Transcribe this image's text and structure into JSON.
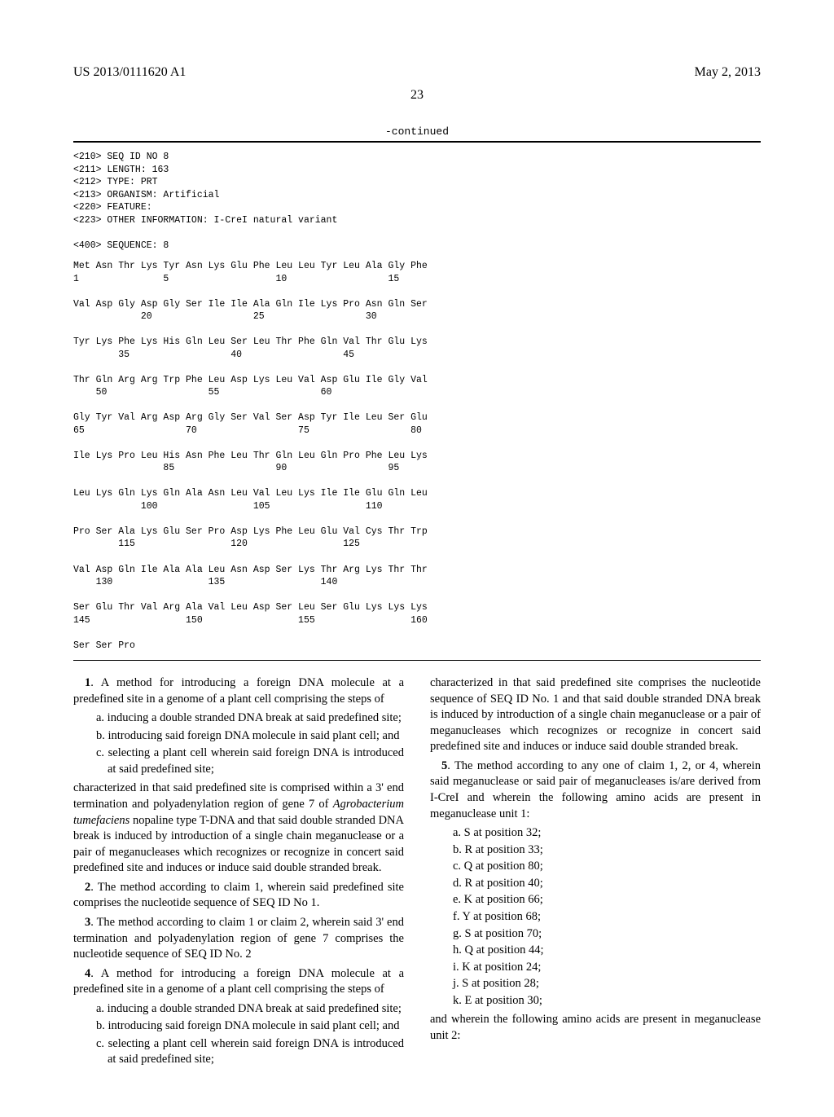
{
  "header": {
    "pub_number": "US 2013/0111620 A1",
    "pub_date": "May 2, 2013",
    "page_number": "23",
    "continued_label": "-continued"
  },
  "seq_meta": {
    "l210": "<210> SEQ ID NO 8",
    "l211": "<211> LENGTH: 163",
    "l212": "<212> TYPE: PRT",
    "l213": "<213> ORGANISM: Artificial",
    "l220": "<220> FEATURE:",
    "l223": "<223> OTHER INFORMATION: I-CreI natural variant",
    "l400": "<400> SEQUENCE: 8"
  },
  "seq_lines": [
    "Met Asn Thr Lys Tyr Asn Lys Glu Phe Leu Leu Tyr Leu Ala Gly Phe",
    "1               5                   10                  15",
    "",
    "Val Asp Gly Asp Gly Ser Ile Ile Ala Gln Ile Lys Pro Asn Gln Ser",
    "            20                  25                  30",
    "",
    "Tyr Lys Phe Lys His Gln Leu Ser Leu Thr Phe Gln Val Thr Glu Lys",
    "        35                  40                  45",
    "",
    "Thr Gln Arg Arg Trp Phe Leu Asp Lys Leu Val Asp Glu Ile Gly Val",
    "    50                  55                  60",
    "",
    "Gly Tyr Val Arg Asp Arg Gly Ser Val Ser Asp Tyr Ile Leu Ser Glu",
    "65                  70                  75                  80",
    "",
    "Ile Lys Pro Leu His Asn Phe Leu Thr Gln Leu Gln Pro Phe Leu Lys",
    "                85                  90                  95",
    "",
    "Leu Lys Gln Lys Gln Ala Asn Leu Val Leu Lys Ile Ile Glu Gln Leu",
    "            100                 105                 110",
    "",
    "Pro Ser Ala Lys Glu Ser Pro Asp Lys Phe Leu Glu Val Cys Thr Trp",
    "        115                 120                 125",
    "",
    "Val Asp Gln Ile Ala Ala Leu Asn Asp Ser Lys Thr Arg Lys Thr Thr",
    "    130                 135                 140",
    "",
    "Ser Glu Thr Val Arg Ala Val Leu Asp Ser Leu Ser Glu Lys Lys Lys",
    "145                 150                 155                 160",
    "",
    "Ser Ser Pro"
  ],
  "claims": {
    "c1_lead": "1. A method for introducing a foreign DNA molecule at a predefined site in a genome of a plant cell comprising the steps of",
    "c1_steps": [
      "a. inducing a double stranded DNA break at said predefined site;",
      "b. introducing said foreign DNA molecule in said plant cell; and",
      "c. selecting a plant cell wherein said foreign DNA is introduced at said predefined site;"
    ],
    "c1_tail_a": "characterized in that said predefined site is comprised within a 3' end termination and polyadenylation region of gene 7 of ",
    "c1_tail_ital": "Agrobacterium tumefaciens",
    "c1_tail_b": " nopaline type T-DNA and that said double stranded DNA break is induced by introduction of a single chain meganuclease or a pair of meganucleases which recognizes or recognize in concert said predefined site and induces or induce said double stranded break.",
    "c2": "2. The method according to claim 1, wherein said predefined site comprises the nucleotide sequence of SEQ ID No 1.",
    "c3": "3. The method according to claim 1 or claim 2, wherein said 3' end termination and polyadenylation region of gene 7 comprises the nucleotide sequence of SEQ ID No. 2",
    "c4_lead": "4. A method for introducing a foreign DNA molecule at a predefined site in a genome of a plant cell comprising the steps of",
    "c4_steps": [
      "a. inducing a double stranded DNA break at said predefined site;",
      "b. introducing said foreign DNA molecule in said plant cell; and",
      "c. selecting a plant cell wherein said foreign DNA is introduced at said predefined site;"
    ],
    "c4_tail": "characterized in that said predefined site comprises the nucleotide sequence of SEQ ID No. 1 and that said double stranded DNA break is induced by introduction of a single chain meganuclease or a pair of meganucleases which recognizes or recognize in concert said predefined site and induces or induce said double stranded break.",
    "c5_lead": "5. The method according to any one of claim 1, 2, or 4, wherein said meganuclease or said pair of meganucleases is/are derived from I-CreI and wherein the following amino acids are present in meganuclease unit 1:",
    "c5_amino": [
      "a. S at position 32;",
      "b. R at position 33;",
      "c. Q at position 80;",
      "d. R at position 40;",
      "e. K at position 66;",
      "f. Y at position 68;",
      "g. S at position 70;",
      "h. Q at position 44;",
      "i. K at position 24;",
      "j. S at position 28;",
      "k. E at position 30;"
    ],
    "c5_tail": "and wherein the following amino acids are present in meganuclease unit 2:"
  }
}
